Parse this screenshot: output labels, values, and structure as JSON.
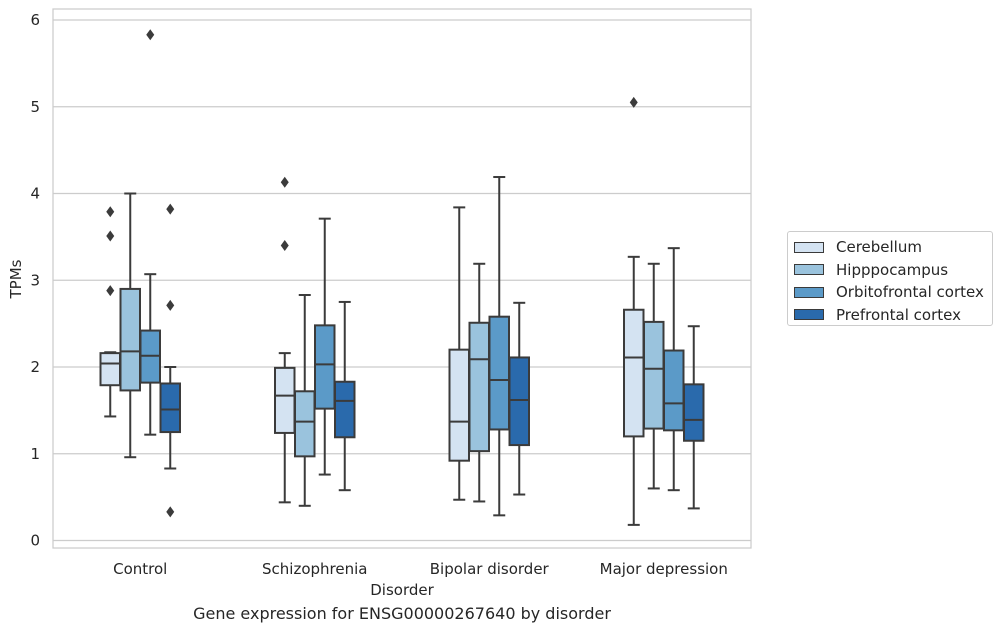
{
  "chart_data": {
    "type": "box",
    "title": "",
    "caption": "Gene expression for ENSG00000267640 by disorder",
    "xlabel": "Disorder",
    "ylabel": "TPMs",
    "ylim": [
      -0.1,
      6.1
    ],
    "yticks": [
      "0",
      "1",
      "2",
      "3",
      "4",
      "5",
      "6"
    ],
    "grid": "horizontal",
    "legend_position": "right",
    "categories": [
      "Control",
      "Schizophrenia",
      "Bipolar disorder",
      "Major depression"
    ],
    "series": [
      {
        "name": "Cerebellum",
        "color": "#d4e3f2",
        "boxes": [
          {
            "whislo": 1.43,
            "q1": 1.79,
            "med": 2.04,
            "q3": 2.16,
            "whishi": 2.17,
            "fliers": [
              2.88,
              3.51,
              3.79
            ]
          },
          {
            "whislo": 0.44,
            "q1": 1.24,
            "med": 1.67,
            "q3": 1.99,
            "whishi": 2.16,
            "fliers": [
              3.4,
              4.13
            ]
          },
          {
            "whislo": 0.47,
            "q1": 0.92,
            "med": 1.37,
            "q3": 2.2,
            "whishi": 3.84,
            "fliers": []
          },
          {
            "whislo": 0.18,
            "q1": 1.2,
            "med": 2.11,
            "q3": 2.66,
            "whishi": 3.27,
            "fliers": [
              5.05
            ]
          }
        ]
      },
      {
        "name": "Hipppocampus",
        "color": "#9ac3dd",
        "boxes": [
          {
            "whislo": 0.96,
            "q1": 1.73,
            "med": 2.18,
            "q3": 2.9,
            "whishi": 4.0,
            "fliers": []
          },
          {
            "whislo": 0.4,
            "q1": 0.97,
            "med": 1.37,
            "q3": 1.72,
            "whishi": 2.83,
            "fliers": []
          },
          {
            "whislo": 0.45,
            "q1": 1.03,
            "med": 2.09,
            "q3": 2.51,
            "whishi": 3.19,
            "fliers": []
          },
          {
            "whislo": 0.6,
            "q1": 1.29,
            "med": 1.98,
            "q3": 2.52,
            "whishi": 3.19,
            "fliers": []
          }
        ]
      },
      {
        "name": "Orbitofrontal cortex",
        "color": "#5b9ac8",
        "boxes": [
          {
            "whislo": 1.22,
            "q1": 1.82,
            "med": 2.13,
            "q3": 2.42,
            "whishi": 3.07,
            "fliers": [
              5.83
            ]
          },
          {
            "whislo": 0.76,
            "q1": 1.52,
            "med": 2.03,
            "q3": 2.48,
            "whishi": 3.71,
            "fliers": []
          },
          {
            "whislo": 0.29,
            "q1": 1.28,
            "med": 1.85,
            "q3": 2.58,
            "whishi": 4.19,
            "fliers": []
          },
          {
            "whislo": 0.58,
            "q1": 1.27,
            "med": 1.58,
            "q3": 2.19,
            "whishi": 3.37,
            "fliers": []
          }
        ]
      },
      {
        "name": "Prefrontal cortex",
        "color": "#2a6aac",
        "boxes": [
          {
            "whislo": 0.83,
            "q1": 1.25,
            "med": 1.51,
            "q3": 1.81,
            "whishi": 2.0,
            "fliers": [
              0.33,
              2.71,
              3.82
            ]
          },
          {
            "whislo": 0.58,
            "q1": 1.19,
            "med": 1.61,
            "q3": 1.83,
            "whishi": 2.75,
            "fliers": []
          },
          {
            "whislo": 0.53,
            "q1": 1.1,
            "med": 1.62,
            "q3": 2.11,
            "whishi": 2.74,
            "fliers": []
          },
          {
            "whislo": 0.37,
            "q1": 1.15,
            "med": 1.39,
            "q3": 1.8,
            "whishi": 2.47,
            "fliers": []
          }
        ]
      }
    ]
  }
}
